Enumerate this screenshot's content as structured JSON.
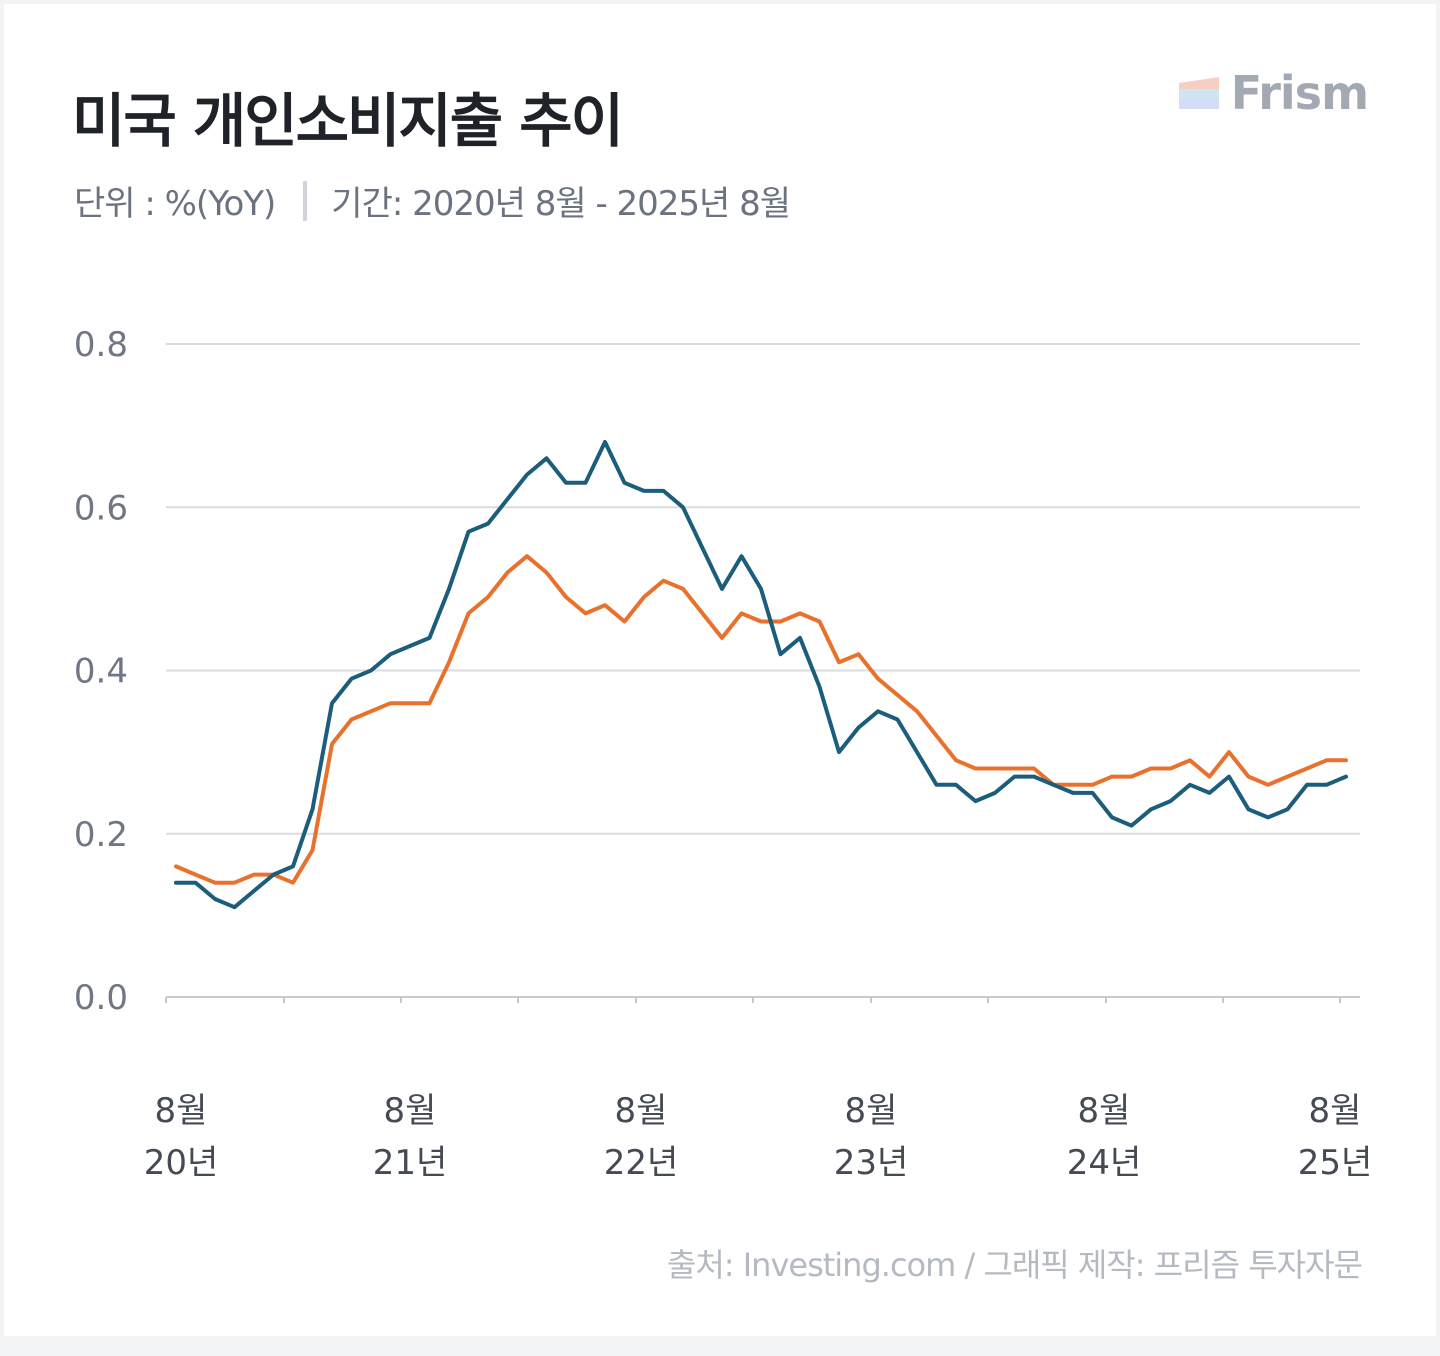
{
  "header": {
    "title": "미국 개인소비지출 추이",
    "unit": "단위 : %(YoY)",
    "period": "기간: 2020년 8월 - 2025년 8월"
  },
  "logo": {
    "text": "Frism"
  },
  "footer": {
    "source": "출처: Investing.com / 그래픽 제작: 프리즘 투자자문"
  },
  "chart_data": {
    "type": "line",
    "x_start": "2020-08",
    "x_end": "2025-08",
    "ylim": [
      0,
      0.8
    ],
    "yticks": [
      "0.0",
      "0.2",
      "0.4",
      "0.6",
      "0.8"
    ],
    "xticks": [
      {
        "month": "8월",
        "year": "20년"
      },
      {
        "month": "8월",
        "year": "21년"
      },
      {
        "month": "8월",
        "year": "22년"
      },
      {
        "month": "8월",
        "year": "23년"
      },
      {
        "month": "8월",
        "year": "24년"
      },
      {
        "month": "8월",
        "year": "25년"
      }
    ],
    "grid": true,
    "legend": "none",
    "series": [
      {
        "color": "#1b5d7b",
        "values": [
          0.14,
          0.14,
          0.12,
          0.11,
          0.13,
          0.15,
          0.16,
          0.23,
          0.36,
          0.39,
          0.4,
          0.42,
          0.43,
          0.44,
          0.5,
          0.57,
          0.58,
          0.61,
          0.64,
          0.66,
          0.63,
          0.63,
          0.68,
          0.63,
          0.62,
          0.62,
          0.6,
          0.55,
          0.5,
          0.54,
          0.5,
          0.42,
          0.44,
          0.38,
          0.3,
          0.33,
          0.35,
          0.34,
          0.3,
          0.26,
          0.26,
          0.24,
          0.25,
          0.27,
          0.27,
          0.26,
          0.25,
          0.25,
          0.22,
          0.21,
          0.23,
          0.24,
          0.26,
          0.25,
          0.27,
          0.23,
          0.22,
          0.23,
          0.26,
          0.26,
          0.27
        ]
      },
      {
        "color": "#e8712e",
        "values": [
          0.16,
          0.15,
          0.14,
          0.14,
          0.15,
          0.15,
          0.14,
          0.18,
          0.31,
          0.34,
          0.35,
          0.36,
          0.36,
          0.36,
          0.41,
          0.47,
          0.49,
          0.52,
          0.54,
          0.52,
          0.49,
          0.47,
          0.48,
          0.46,
          0.49,
          0.51,
          0.5,
          0.47,
          0.44,
          0.47,
          0.46,
          0.46,
          0.47,
          0.46,
          0.41,
          0.42,
          0.39,
          0.37,
          0.35,
          0.32,
          0.29,
          0.28,
          0.28,
          0.28,
          0.28,
          0.26,
          0.26,
          0.26,
          0.27,
          0.27,
          0.28,
          0.28,
          0.29,
          0.27,
          0.3,
          0.27,
          0.26,
          0.27,
          0.28,
          0.29,
          0.29
        ]
      }
    ]
  }
}
